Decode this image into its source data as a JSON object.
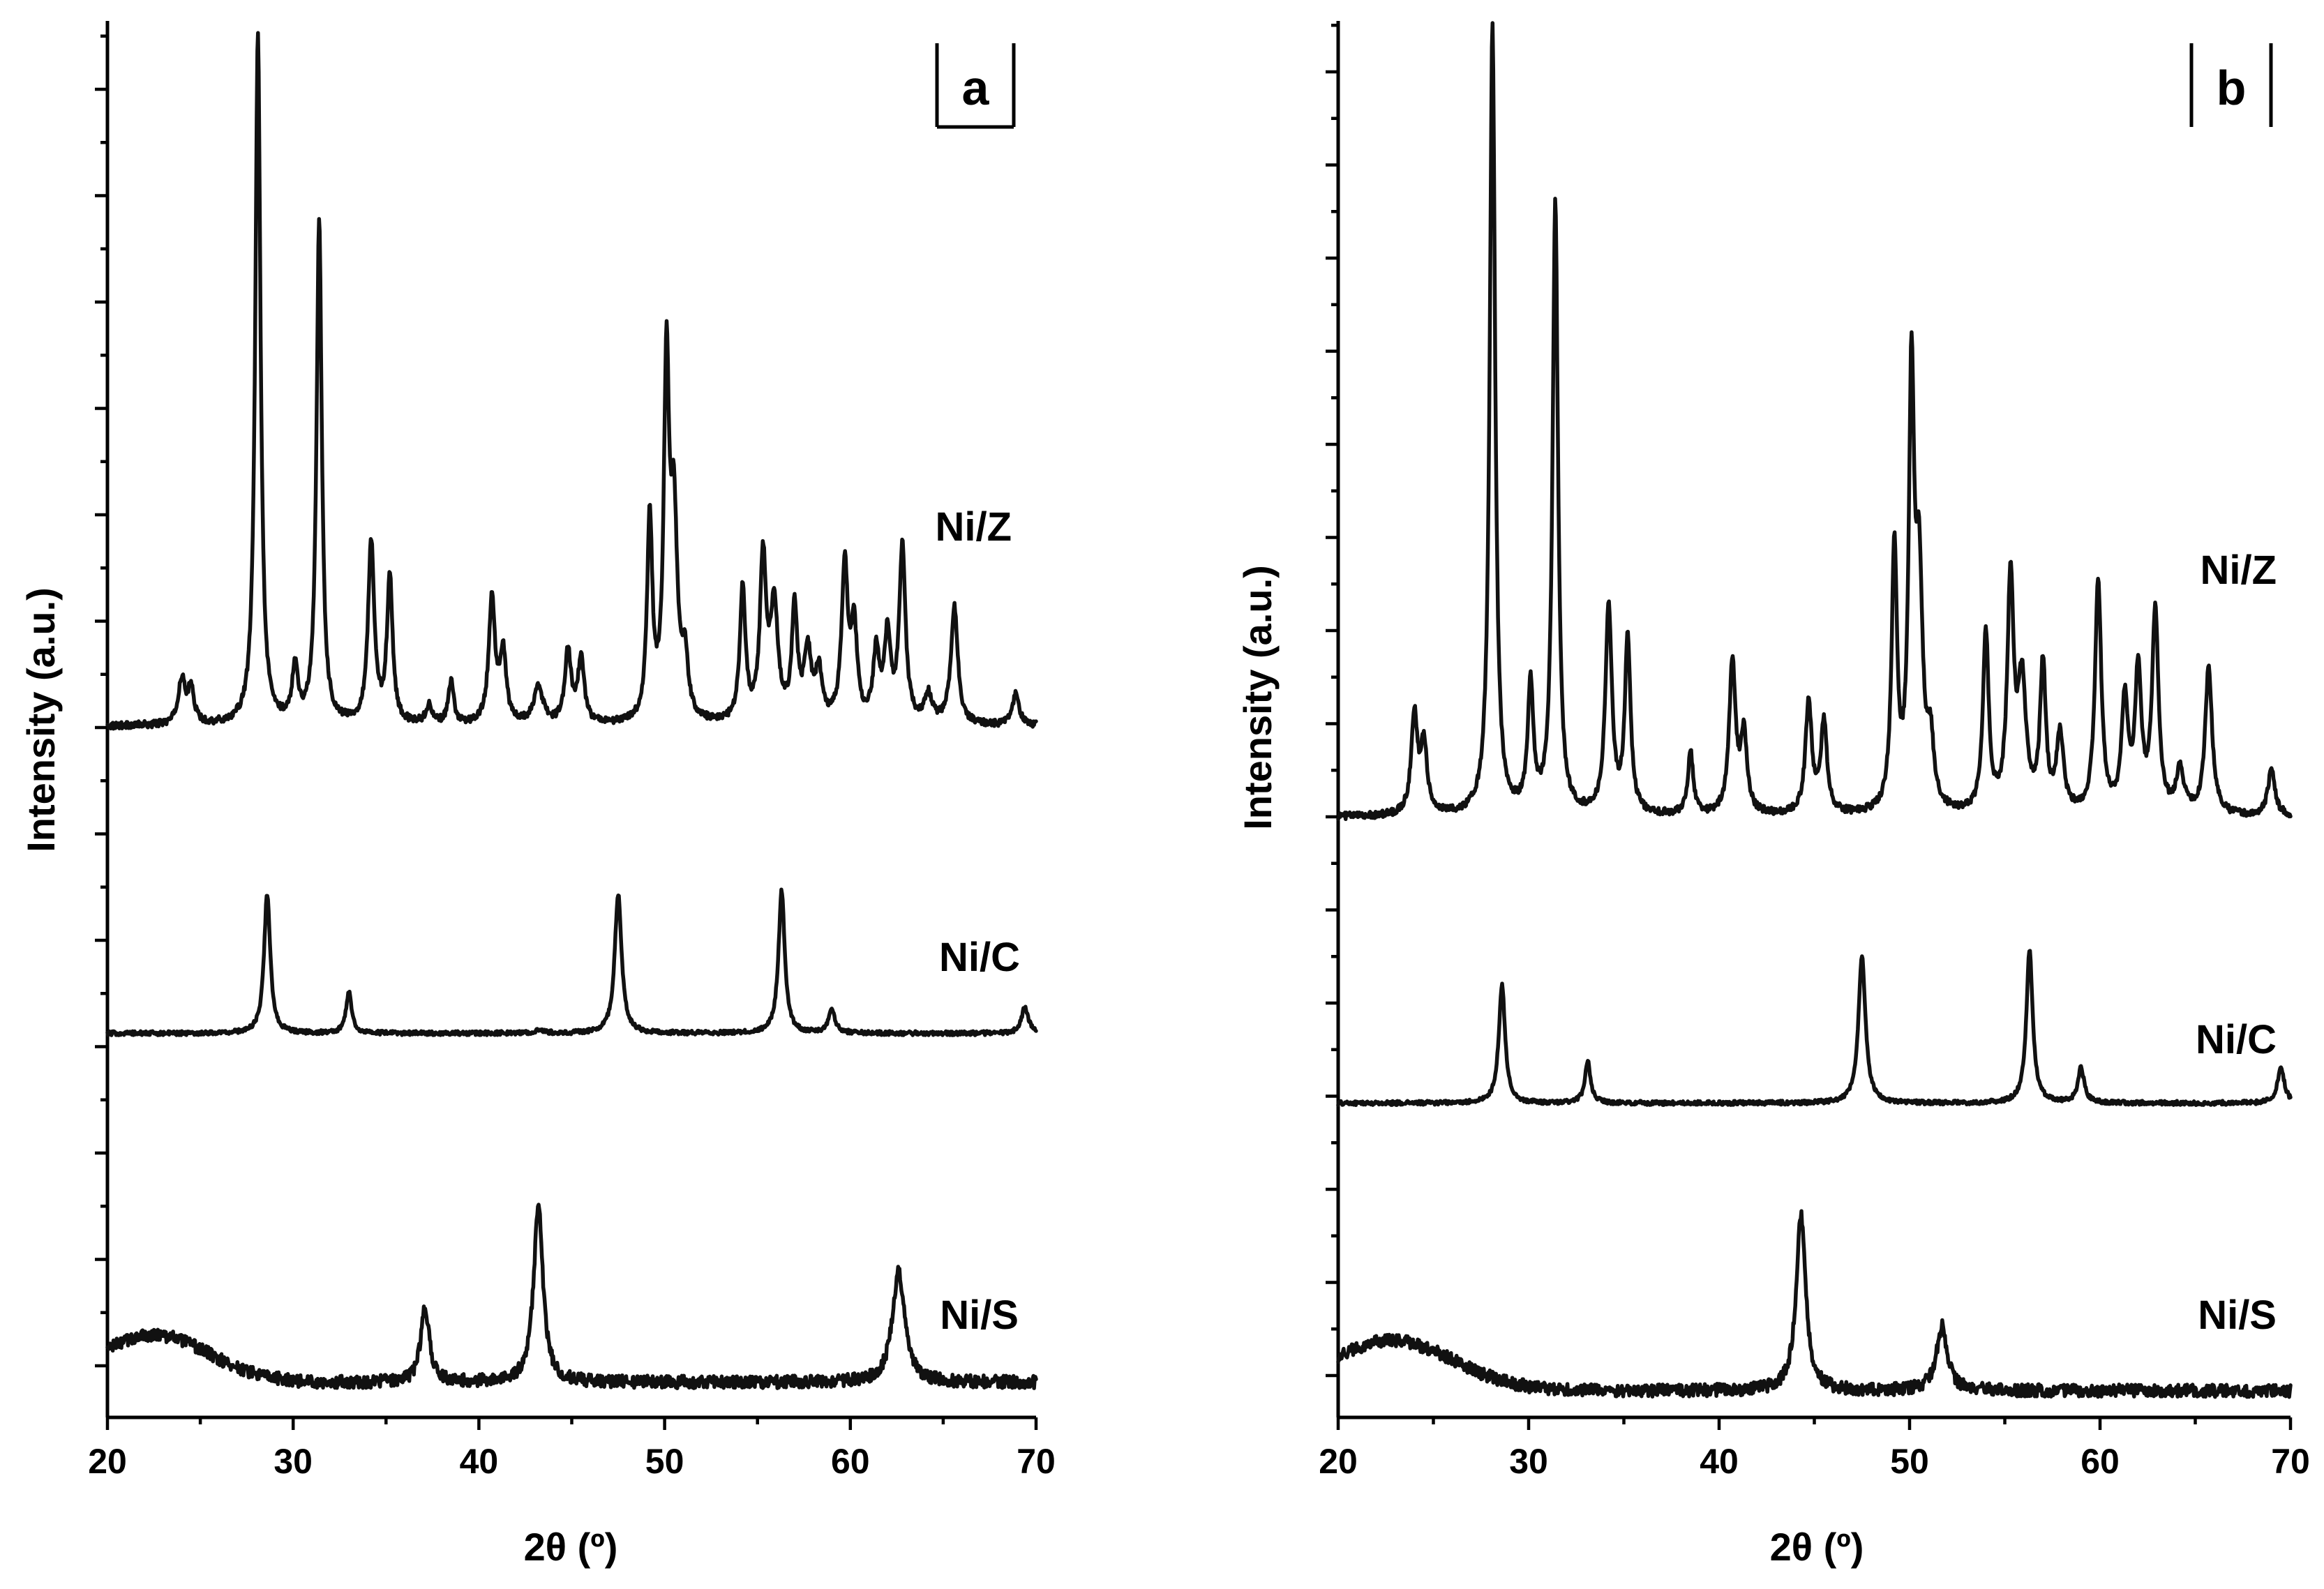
{
  "chart_data": [
    {
      "panel": "a",
      "type": "line",
      "xlabel": "2θ (º)",
      "ylabel": "Intensity (a.u.)",
      "xlim": [
        20,
        70
      ],
      "ylim": [
        0,
        100
      ],
      "xticks": [
        20,
        30,
        40,
        50,
        60,
        70
      ],
      "series": [
        {
          "name": "Ni/Z",
          "baseline": 49.5,
          "noise": 0.25,
          "peaks": [
            [
              24.0,
              3.2,
              0.22
            ],
            [
              24.5,
              2.5,
              0.2
            ],
            [
              28.1,
              49.5,
              0.17
            ],
            [
              30.1,
              4.0,
              0.18
            ],
            [
              31.4,
              36.0,
              0.17
            ],
            [
              34.2,
              13.0,
              0.2
            ],
            [
              35.2,
              10.5,
              0.18
            ],
            [
              37.3,
              1.3,
              0.2
            ],
            [
              38.5,
              3.0,
              0.17
            ],
            [
              40.7,
              9.0,
              0.2
            ],
            [
              41.3,
              5.0,
              0.2
            ],
            [
              43.2,
              2.6,
              0.3
            ],
            [
              44.8,
              5.2,
              0.2
            ],
            [
              45.5,
              4.6,
              0.2
            ],
            [
              49.2,
              14.5,
              0.17
            ],
            [
              50.1,
              25.0,
              0.17
            ],
            [
              50.5,
              14.0,
              0.22
            ],
            [
              51.1,
              4.0,
              0.2
            ],
            [
              54.2,
              9.5,
              0.18
            ],
            [
              55.3,
              11.5,
              0.2
            ],
            [
              55.9,
              8.0,
              0.25
            ],
            [
              57.0,
              8.0,
              0.18
            ],
            [
              57.7,
              5.0,
              0.22
            ],
            [
              58.3,
              3.5,
              0.22
            ],
            [
              59.7,
              11.0,
              0.2
            ],
            [
              60.2,
              6.5,
              0.2
            ],
            [
              61.4,
              5.0,
              0.2
            ],
            [
              62.0,
              6.0,
              0.2
            ],
            [
              62.8,
              12.5,
              0.2
            ],
            [
              64.2,
              2.0,
              0.25
            ],
            [
              65.6,
              8.5,
              0.22
            ],
            [
              68.9,
              2.2,
              0.22
            ]
          ]
        },
        {
          "name": "Ni/C",
          "baseline": 27.5,
          "noise": 0.15,
          "peaks": [
            [
              28.6,
              10.0,
              0.2
            ],
            [
              33.0,
              3.0,
              0.18
            ],
            [
              43.3,
              0.2,
              0.3
            ],
            [
              47.5,
              10.0,
              0.22
            ],
            [
              56.3,
              10.2,
              0.2
            ],
            [
              59.0,
              1.8,
              0.2
            ],
            [
              69.4,
              1.9,
              0.22
            ]
          ]
        },
        {
          "name": "Ni/S",
          "baseline": 2.5,
          "noise": 0.45,
          "hump": {
            "center": 22.5,
            "height": 3.4,
            "width": 4.2
          },
          "peaks": [
            [
              37.1,
              5.4,
              0.28
            ],
            [
              43.2,
              12.8,
              0.3
            ],
            [
              62.6,
              8.0,
              0.4
            ]
          ]
        }
      ]
    },
    {
      "panel": "b",
      "type": "line",
      "xlabel": "2θ (º)",
      "ylabel": "Intensity (a.u.)",
      "xlim": [
        20,
        70
      ],
      "ylim": [
        0,
        100
      ],
      "xticks": [
        20,
        30,
        40,
        50,
        60,
        70
      ],
      "series": [
        {
          "name": "Ni/Z",
          "baseline": 43.0,
          "noise": 0.25,
          "peaks": [
            [
              24.0,
              7.0,
              0.2
            ],
            [
              24.5,
              5.0,
              0.2
            ],
            [
              28.1,
              56.5,
              0.17
            ],
            [
              30.1,
              9.0,
              0.18
            ],
            [
              31.4,
              44.0,
              0.17
            ],
            [
              34.2,
              15.0,
              0.2
            ],
            [
              35.2,
              12.5,
              0.18
            ],
            [
              38.5,
              4.5,
              0.17
            ],
            [
              40.7,
              11.0,
              0.2
            ],
            [
              41.3,
              5.5,
              0.2
            ],
            [
              44.7,
              8.0,
              0.2
            ],
            [
              45.5,
              6.5,
              0.2
            ],
            [
              49.2,
              19.0,
              0.17
            ],
            [
              50.1,
              30.0,
              0.17
            ],
            [
              50.5,
              16.0,
              0.22
            ],
            [
              51.1,
              4.5,
              0.2
            ],
            [
              54.0,
              13.0,
              0.18
            ],
            [
              55.3,
              16.5,
              0.2
            ],
            [
              55.9,
              9.0,
              0.25
            ],
            [
              57.0,
              10.5,
              0.18
            ],
            [
              57.9,
              5.5,
              0.22
            ],
            [
              59.9,
              16.5,
              0.2
            ],
            [
              61.3,
              8.0,
              0.2
            ],
            [
              62.0,
              10.0,
              0.2
            ],
            [
              62.9,
              14.5,
              0.2
            ],
            [
              64.2,
              3.0,
              0.25
            ],
            [
              65.7,
              10.5,
              0.22
            ],
            [
              69.0,
              3.3,
              0.22
            ]
          ]
        },
        {
          "name": "Ni/C",
          "baseline": 22.5,
          "noise": 0.15,
          "peaks": [
            [
              28.6,
              8.5,
              0.2
            ],
            [
              33.1,
              3.0,
              0.18
            ],
            [
              47.5,
              10.5,
              0.22
            ],
            [
              56.3,
              11.0,
              0.2
            ],
            [
              59.0,
              2.5,
              0.2
            ],
            [
              69.5,
              2.5,
              0.22
            ]
          ]
        },
        {
          "name": "Ni/S",
          "baseline": 1.9,
          "noise": 0.45,
          "hump": {
            "center": 22.8,
            "height": 3.6,
            "width": 4.6
          },
          "peaks": [
            [
              44.3,
              12.5,
              0.3
            ],
            [
              51.7,
              4.6,
              0.35
            ]
          ]
        }
      ]
    }
  ]
}
